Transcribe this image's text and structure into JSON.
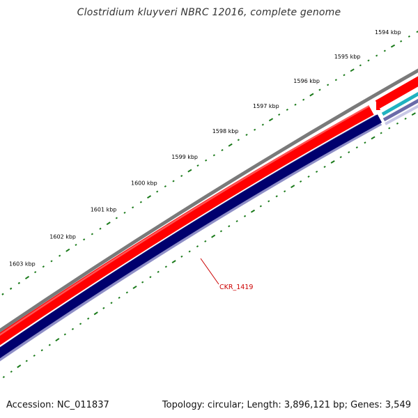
{
  "title": "Clostridium kluyveri NBRC 12016, complete genome",
  "accession": "Accession: NC_011837",
  "summary": "Topology: circular; Length: 3,896,121 bp; Genes: 3,549",
  "gene_label": "CKR_1419",
  "colors": {
    "tick": "#1a7a1a",
    "backbone": "#7a7a7a",
    "forward_gene": "#ff0000",
    "reverse_gene": "#00006e",
    "reverse_outline": "#8f8fc7",
    "teal_gene": "#20b2c0",
    "gene_label": "#cc0000"
  },
  "kbp_labels": [
    "1594 kbp",
    "1595 kbp",
    "1596 kbp",
    "1597 kbp",
    "1598 kbp",
    "1599 kbp",
    "1600 kbp",
    "1601 kbp",
    "1602 kbp",
    "1603 kbp"
  ]
}
